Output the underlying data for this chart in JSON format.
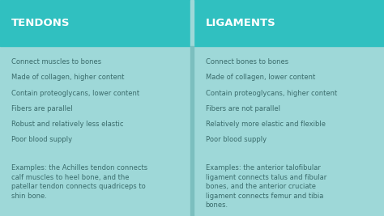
{
  "header_bg": "#30c0c0",
  "body_bg": "#9ed8d8",
  "divider_color": "#7bbfbf",
  "header_text_color": "#ffffff",
  "body_text_color": "#3a6b6b",
  "left_header": "TENDONS",
  "right_header": "LIGAMENTS",
  "left_bullets": [
    "Connect muscles to bones",
    "Made of collagen, higher content",
    "Contain proteoglycans, lower content",
    "Fibers are parallel",
    "Robust and relatively less elastic",
    "Poor blood supply"
  ],
  "right_bullets": [
    "Connect bones to bones",
    "Made of collagen, lower content",
    "Contain proteoglycans, higher content",
    "Fibers are not parallel",
    "Relatively more elastic and flexible",
    "Poor blood supply"
  ],
  "left_example": "Examples: the Achilles tendon connects\ncalf muscles to heel bone, and the\npatellar tendon connects quadriceps to\nshin bone.",
  "right_example": "Examples: the anterior talofibular\nligament connects talus and fibular\nbones, and the anterior cruciate\nligament connects femur and tibia\nbones.",
  "header_fontsize": 9.5,
  "body_fontsize": 6.0,
  "fig_width": 4.74,
  "fig_height": 2.67,
  "dpi": 100
}
